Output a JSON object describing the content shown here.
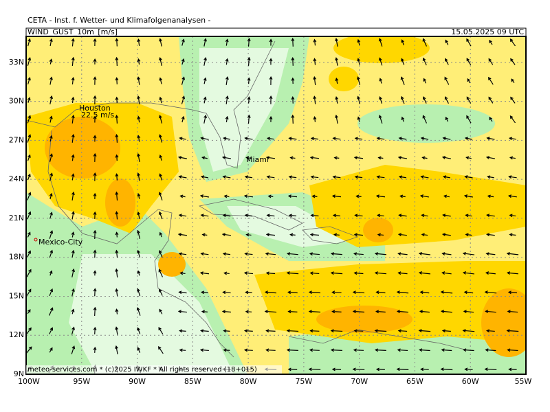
{
  "header": {
    "title": "CETA - Inst. f. Wetter- und Klimafolgenanalysen -",
    "parameter": "WIND_GUST_10m_[m/s]",
    "valid_time": "15.05.2025 09 UTC"
  },
  "map": {
    "xlim": [
      -100,
      -55
    ],
    "ylim": [
      9,
      35
    ],
    "xticks": [
      {
        "value": -100,
        "label": "100W"
      },
      {
        "value": -95,
        "label": "95W"
      },
      {
        "value": -90,
        "label": "90W"
      },
      {
        "value": -85,
        "label": "85W"
      },
      {
        "value": -80,
        "label": "80W"
      },
      {
        "value": -75,
        "label": "75W"
      },
      {
        "value": -70,
        "label": "70W"
      },
      {
        "value": -65,
        "label": "65W"
      },
      {
        "value": -60,
        "label": "60W"
      },
      {
        "value": -55,
        "label": "55W"
      }
    ],
    "yticks": [
      {
        "value": 9,
        "label": "9N"
      },
      {
        "value": 12,
        "label": "12N"
      },
      {
        "value": 15,
        "label": "15N"
      },
      {
        "value": 18,
        "label": "18N"
      },
      {
        "value": 21,
        "label": "21N"
      },
      {
        "value": 24,
        "label": "24N"
      },
      {
        "value": 27,
        "label": "27N"
      },
      {
        "value": 30,
        "label": "30N"
      },
      {
        "value": 33,
        "label": "33N"
      }
    ],
    "places": [
      "Houston",
      "Miami",
      "Mexico-City"
    ],
    "max_gust": "22.5 m/s"
  },
  "footer": "meteo-services.com * (c)2025 IWKF * All rights reserved (18+015)"
}
